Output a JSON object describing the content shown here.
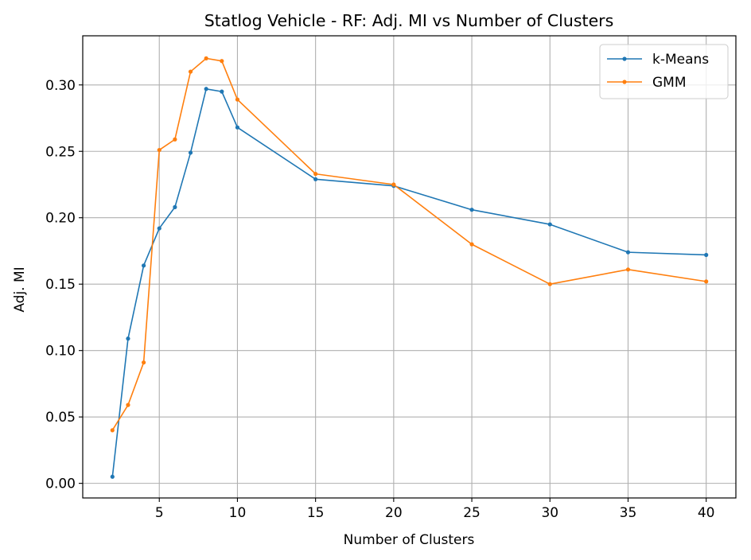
{
  "chart_data": {
    "type": "line",
    "title": "Statlog Vehicle - RF: Adj. MI vs Number of Clusters",
    "xlabel": "Number of Clusters",
    "ylabel": "Adj. MI",
    "xlim": [
      0.1,
      41.9
    ],
    "ylim": [
      -0.011,
      0.337
    ],
    "xticks": [
      5,
      10,
      15,
      20,
      25,
      30,
      35,
      40
    ],
    "xtick_labels": [
      "5",
      "10",
      "15",
      "20",
      "25",
      "30",
      "35",
      "40"
    ],
    "yticks": [
      0.0,
      0.05,
      0.1,
      0.15,
      0.2,
      0.25,
      0.3
    ],
    "ytick_labels": [
      "0.00",
      "0.05",
      "0.10",
      "0.15",
      "0.20",
      "0.25",
      "0.30"
    ],
    "grid": true,
    "legend_position": "top-right",
    "x": [
      2,
      3,
      4,
      5,
      6,
      7,
      8,
      9,
      10,
      15,
      20,
      25,
      30,
      35,
      40
    ],
    "series": [
      {
        "name": "k-Means",
        "color": "#1f77b4",
        "values": [
          0.005,
          0.109,
          0.164,
          0.192,
          0.208,
          0.249,
          0.297,
          0.295,
          0.268,
          0.229,
          0.224,
          0.206,
          0.195,
          0.174,
          0.172
        ]
      },
      {
        "name": "GMM",
        "color": "#ff7f0e",
        "values": [
          0.04,
          0.059,
          0.091,
          0.251,
          0.259,
          0.31,
          0.32,
          0.318,
          0.289,
          0.233,
          0.225,
          0.18,
          0.15,
          0.161,
          0.152
        ]
      }
    ]
  }
}
